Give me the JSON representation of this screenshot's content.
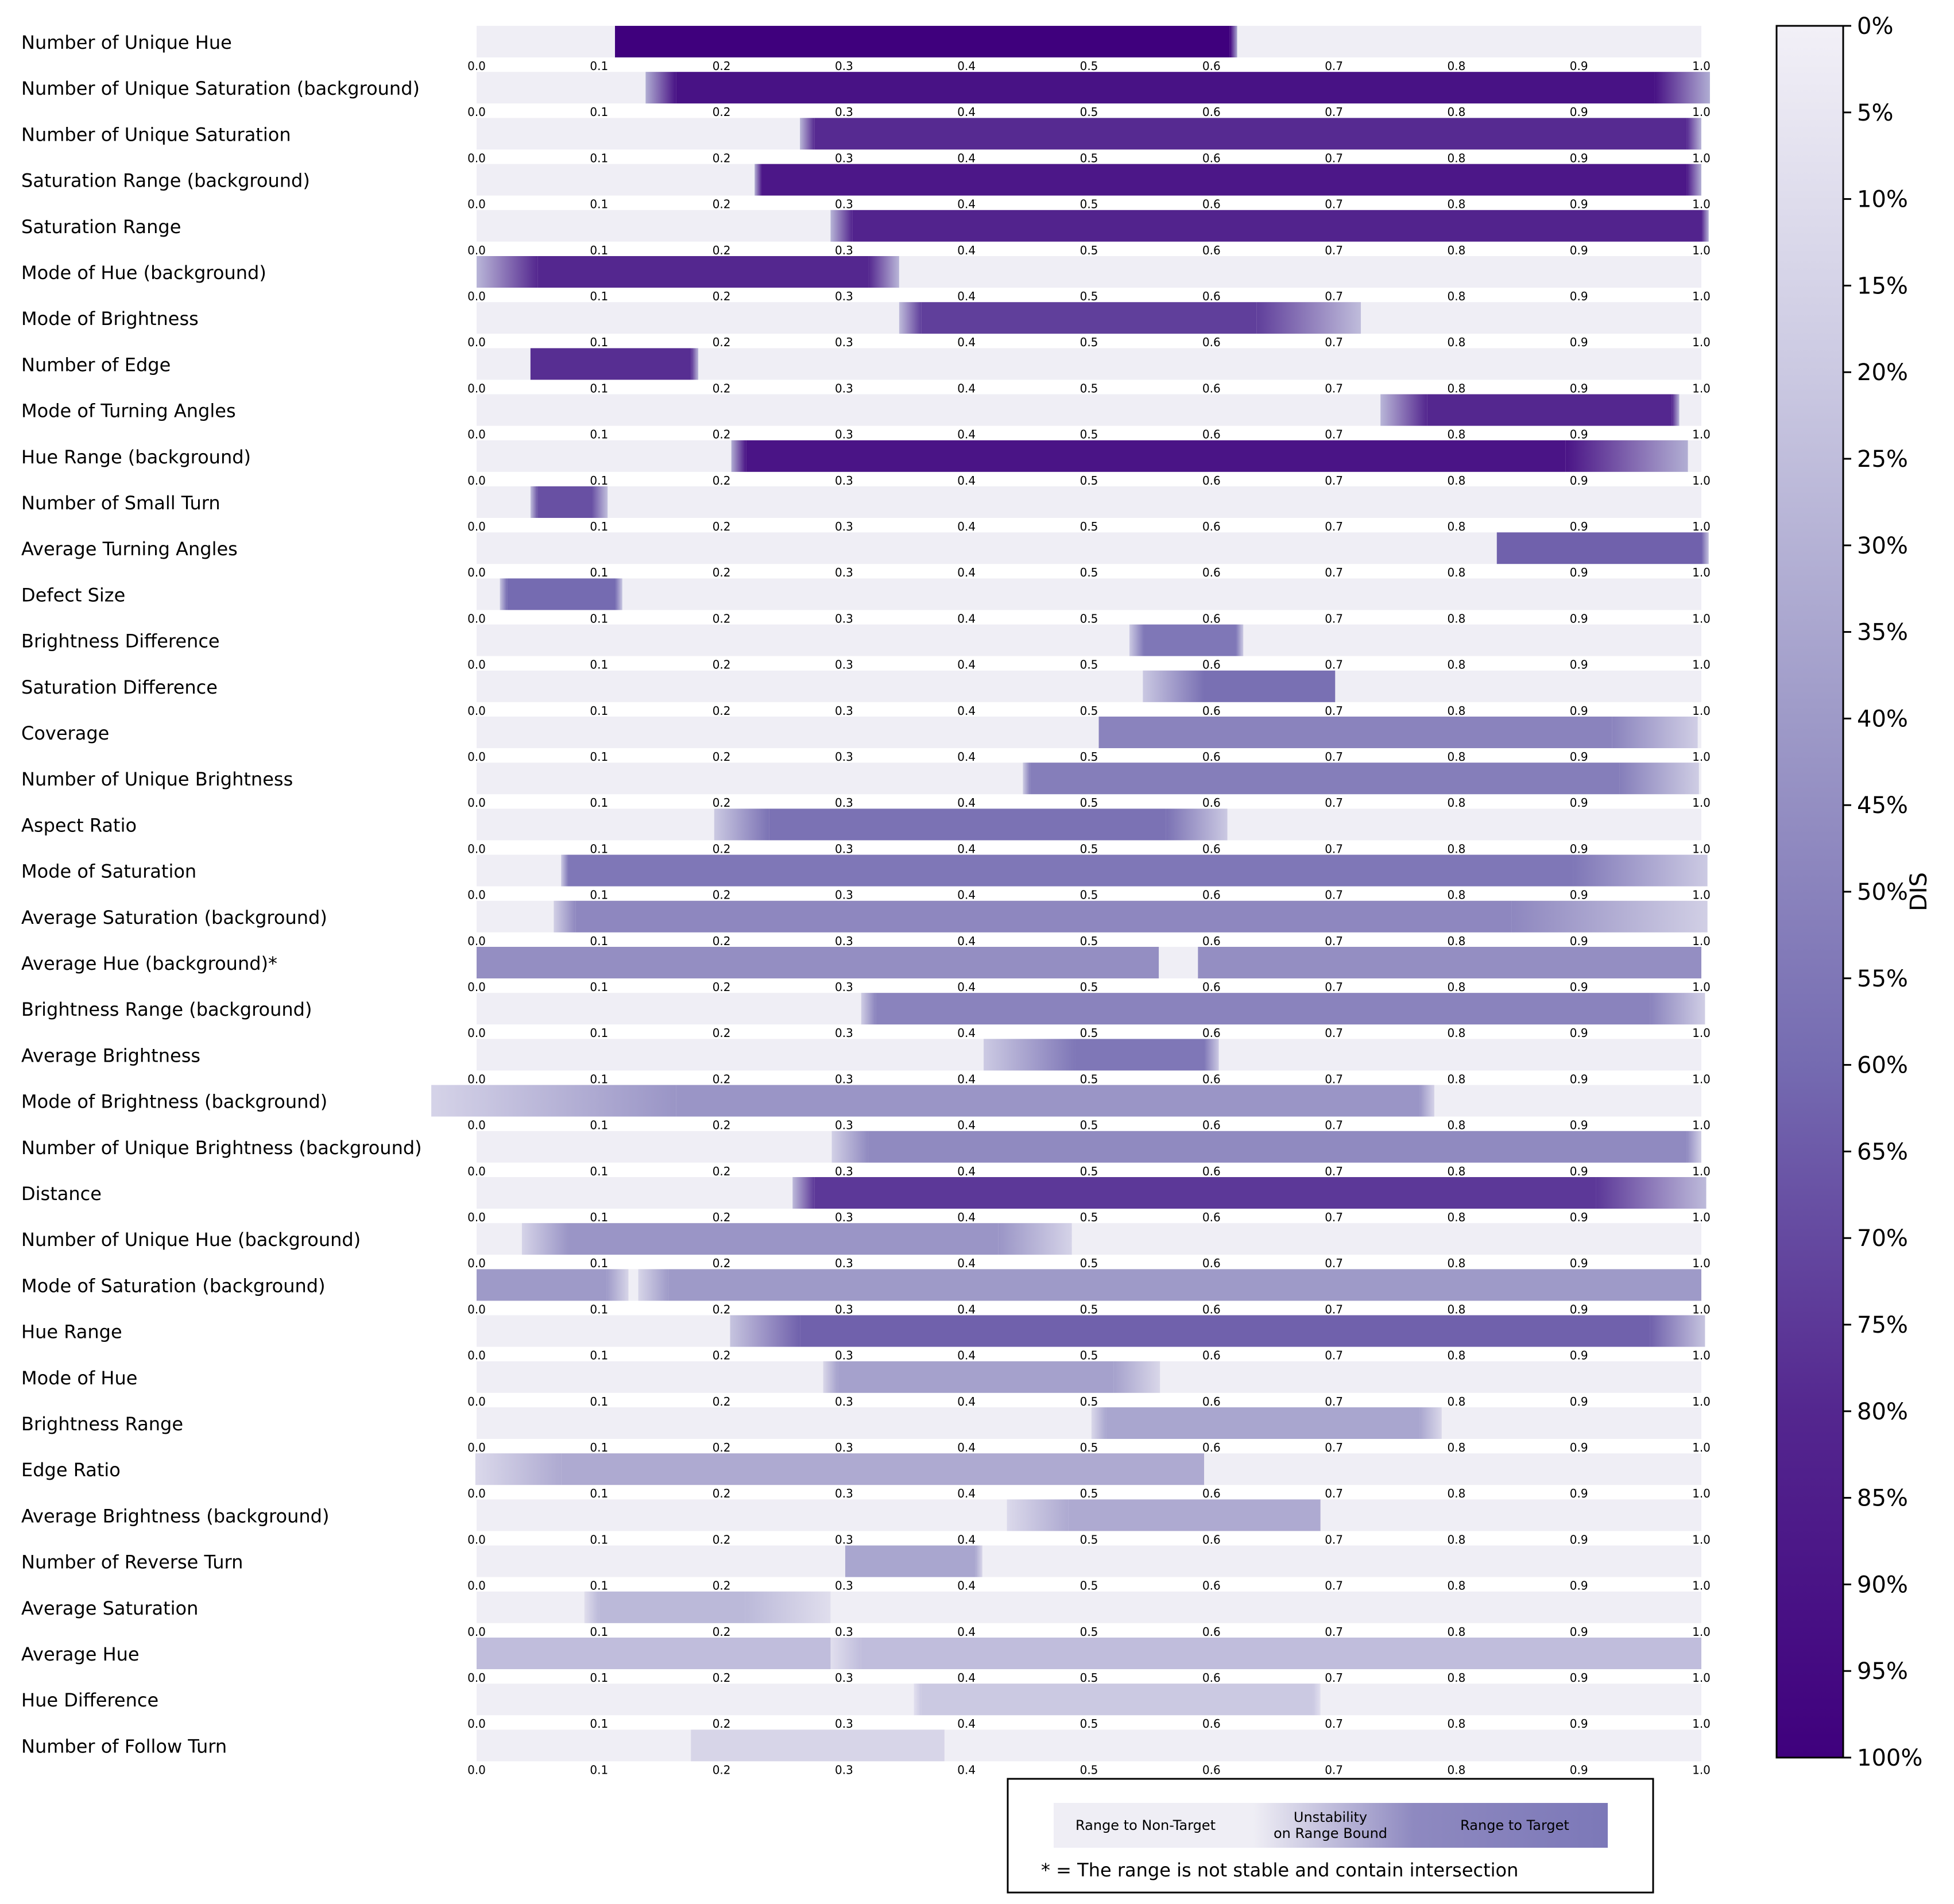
{
  "chart_data": {
    "type": "range-bars",
    "x_ticks": [
      "0.0",
      "0.1",
      "0.2",
      "0.3",
      "0.4",
      "0.5",
      "0.6",
      "0.7",
      "0.8",
      "0.9",
      "1.0"
    ],
    "xlim": [
      0,
      1
    ],
    "colorbar": {
      "label": "DIS",
      "ticks": [
        "0%",
        "5%",
        "10%",
        "15%",
        "20%",
        "25%",
        "30%",
        "35%",
        "40%",
        "45%",
        "50%",
        "55%",
        "60%",
        "65%",
        "70%",
        "75%",
        "80%",
        "85%",
        "90%",
        "95%",
        "100%"
      ],
      "range": [
        0,
        1
      ],
      "colormap": [
        "#f2f0f7",
        "#cbc9e2",
        "#9e9ac8",
        "#756bb1",
        "#54278f",
        "#3f007d"
      ]
    },
    "track_color": "#efeef5",
    "rows": [
      {
        "label": "Number of Unique Hue",
        "dis": 1.0,
        "segments": [
          {
            "range": [
              0.113,
              0.615
            ],
            "fade_left": 0.0,
            "fade_right": 0.006
          }
        ]
      },
      {
        "label": "Number of Unique Saturation (background)",
        "dis": 0.91,
        "segments": [
          {
            "range": [
              0.163,
              0.962
            ],
            "fade_left": 0.025,
            "fade_right": 0.045
          }
        ]
      },
      {
        "label": "Number of Unique Saturation",
        "dis": 0.79,
        "segments": [
          {
            "range": [
              0.276,
              0.988
            ],
            "fade_left": 0.012,
            "fade_right": 0.012
          }
        ]
      },
      {
        "label": "Saturation Range (background)",
        "dis": 0.88,
        "segments": [
          {
            "range": [
              0.233,
              0.988
            ],
            "fade_left": 0.006,
            "fade_right": 0.012
          }
        ]
      },
      {
        "label": "Saturation Range",
        "dis": 0.82,
        "segments": [
          {
            "range": [
              0.307,
              1.0
            ],
            "fade_left": 0.018,
            "fade_right": 0.006
          }
        ]
      },
      {
        "label": "Mode of Hue (background)",
        "dis": 0.8,
        "segments": [
          {
            "range": [
              0.05,
              0.32
            ],
            "fade_left": 0.05,
            "fade_right": 0.025
          }
        ]
      },
      {
        "label": "Mode of Brightness",
        "dis": 0.73,
        "segments": [
          {
            "range": [
              0.363,
              0.637
            ],
            "fade_left": 0.018,
            "fade_right": 0.085
          }
        ]
      },
      {
        "label": "Number of Edge",
        "dis": 0.78,
        "segments": [
          {
            "range": [
              0.044,
              0.175
            ],
            "fade_left": 0.0,
            "fade_right": 0.006
          }
        ]
      },
      {
        "label": "Mode of Turning Angles",
        "dis": 0.8,
        "segments": [
          {
            "range": [
              0.776,
              0.976
            ],
            "fade_left": 0.038,
            "fade_right": 0.006
          }
        ]
      },
      {
        "label": "Hue Range (background)",
        "dis": 0.9,
        "segments": [
          {
            "range": [
              0.22,
              0.889
            ],
            "fade_left": 0.012,
            "fade_right": 0.1
          }
        ]
      },
      {
        "label": "Number of Small Turn",
        "dis": 0.68,
        "segments": [
          {
            "range": [
              0.05,
              0.094
            ],
            "fade_left": 0.006,
            "fade_right": 0.013
          }
        ]
      },
      {
        "label": "Average Turning Angles",
        "dis": 0.63,
        "segments": [
          {
            "range": [
              0.833,
              1.0
            ],
            "fade_left": 0.0,
            "fade_right": 0.006
          }
        ]
      },
      {
        "label": "Defect Size",
        "dis": 0.6,
        "segments": [
          {
            "range": [
              0.025,
              0.113
            ],
            "fade_left": 0.006,
            "fade_right": 0.006
          }
        ]
      },
      {
        "label": "Brightness Difference",
        "dis": 0.55,
        "segments": [
          {
            "range": [
              0.545,
              0.62
            ],
            "fade_left": 0.012,
            "fade_right": 0.006
          }
        ]
      },
      {
        "label": "Saturation Difference",
        "dis": 0.58,
        "segments": [
          {
            "range": [
              0.594,
              0.701
            ],
            "fade_left": 0.05,
            "fade_right": 0.0
          }
        ]
      },
      {
        "label": "Coverage",
        "dis": 0.5,
        "segments": [
          {
            "range": [
              0.508,
              0.927
            ],
            "fade_left": 0.0,
            "fade_right": 0.07
          }
        ]
      },
      {
        "label": "Number of Unique Brightness",
        "dis": 0.52,
        "segments": [
          {
            "range": [
              0.452,
              0.933
            ],
            "fade_left": 0.006,
            "fade_right": 0.065
          }
        ]
      },
      {
        "label": "Aspect Ratio",
        "dis": 0.57,
        "segments": [
          {
            "range": [
              0.239,
              0.563
            ],
            "fade_left": 0.045,
            "fade_right": 0.05
          }
        ]
      },
      {
        "label": "Mode of Saturation",
        "dis": 0.55,
        "segments": [
          {
            "range": [
              0.075,
              0.895
            ],
            "fade_left": 0.006,
            "fade_right": 0.11
          }
        ]
      },
      {
        "label": "Average Saturation (background)",
        "dis": 0.48,
        "segments": [
          {
            "range": [
              0.081,
              0.845
            ],
            "fade_left": 0.018,
            "fade_right": 0.16
          }
        ]
      },
      {
        "label": "Average Hue (background)*",
        "dis": 0.45,
        "segments": [
          {
            "range": [
              0.0,
              0.557
            ],
            "fade_left": 0.0,
            "fade_right": 0.0
          },
          {
            "range": [
              0.589,
              1.0
            ],
            "fade_left": 0.0,
            "fade_right": 0.0
          }
        ]
      },
      {
        "label": "Brightness Range (background)",
        "dis": 0.5,
        "segments": [
          {
            "range": [
              0.326,
              0.958
            ],
            "fade_left": 0.012,
            "fade_right": 0.045
          }
        ]
      },
      {
        "label": "Average Brightness",
        "dis": 0.55,
        "segments": [
          {
            "range": [
              0.489,
              0.594
            ],
            "fade_left": 0.075,
            "fade_right": 0.012
          }
        ]
      },
      {
        "label": "Mode of Brightness (background)",
        "dis": 0.42,
        "segments": [
          {
            "range": [
              0.163,
              0.77
            ],
            "fade_left": 0.2,
            "fade_right": 0.012
          }
        ]
      },
      {
        "label": "Number of Unique Brightness (background)",
        "dis": 0.47,
        "segments": [
          {
            "range": [
              0.32,
              0.988
            ],
            "fade_left": 0.03,
            "fade_right": 0.012
          }
        ]
      },
      {
        "label": "Distance",
        "dis": 0.75,
        "segments": [
          {
            "range": [
              0.276,
              0.914
            ],
            "fade_left": 0.018,
            "fade_right": 0.09
          }
        ]
      },
      {
        "label": "Number of Unique Hue (background)",
        "dis": 0.42,
        "segments": [
          {
            "range": [
              0.075,
              0.426
            ],
            "fade_left": 0.038,
            "fade_right": 0.06
          }
        ]
      },
      {
        "label": "Mode of Saturation (background)",
        "dis": 0.4,
        "segments": [
          {
            "range": [
              0.0,
              0.106
            ],
            "fade_left": 0.0,
            "fade_right": 0.018
          },
          {
            "range": [
              0.157,
              1.0
            ],
            "fade_left": 0.025,
            "fade_right": 0.0
          }
        ]
      },
      {
        "label": "Hue Range",
        "dis": 0.63,
        "segments": [
          {
            "range": [
              0.264,
              0.958
            ],
            "fade_left": 0.057,
            "fade_right": 0.045
          }
        ]
      },
      {
        "label": "Mode of Hue",
        "dis": 0.37,
        "segments": [
          {
            "range": [
              0.295,
              0.52
            ],
            "fade_left": 0.012,
            "fade_right": 0.038
          }
        ]
      },
      {
        "label": "Brightness Range",
        "dis": 0.35,
        "segments": [
          {
            "range": [
              0.514,
              0.77
            ],
            "fade_left": 0.012,
            "fade_right": 0.018
          }
        ]
      },
      {
        "label": "Edge Ratio",
        "dis": 0.33,
        "segments": [
          {
            "range": [
              0.069,
              0.594
            ],
            "fade_left": 0.07,
            "fade_right": 0.0
          }
        ]
      },
      {
        "label": "Average Brightness (background)",
        "dis": 0.33,
        "segments": [
          {
            "range": [
              0.483,
              0.689
            ],
            "fade_left": 0.05,
            "fade_right": 0.0
          }
        ]
      },
      {
        "label": "Number of Reverse Turn",
        "dis": 0.35,
        "segments": [
          {
            "range": [
              0.301,
              0.407
            ],
            "fade_left": 0.0,
            "fade_right": 0.006
          }
        ]
      },
      {
        "label": "Average Saturation",
        "dis": 0.27,
        "segments": [
          {
            "range": [
              0.1,
              0.219
            ],
            "fade_left": 0.012,
            "fade_right": 0.07
          }
        ]
      },
      {
        "label": "Average Hue",
        "dis": 0.25,
        "segments": [
          {
            "range": [
              0.0,
              0.295
            ],
            "fade_left": 0.0,
            "fade_right": 0.018
          },
          {
            "range": [
              0.314,
              1.0
            ],
            "fade_left": 0.025,
            "fade_right": 0.0
          }
        ]
      },
      {
        "label": "Hue Difference",
        "dis": 0.2,
        "segments": [
          {
            "range": [
              0.363,
              0.683
            ],
            "fade_left": 0.006,
            "fade_right": 0.006
          }
        ]
      },
      {
        "label": "Number of Follow Turn",
        "dis": 0.14,
        "segments": [
          {
            "range": [
              0.175,
              0.382
            ],
            "fade_left": 0.0,
            "fade_right": 0.0
          }
        ]
      }
    ],
    "legend": {
      "placement": "bottom-center",
      "non_target_label": "Range to Non-Target",
      "unstable_label_line1": "Unstability",
      "unstable_label_line2": "on Range Bound",
      "target_label": "Range to Target",
      "note": "* = The range is not stable and contain intersection"
    }
  }
}
